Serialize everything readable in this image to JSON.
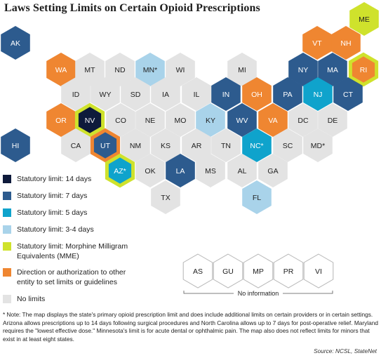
{
  "title": "Laws Setting Limits on Certain Opioid Prescriptions",
  "colors": {
    "d14": "#0e1a3b",
    "d7": "#2d5b8e",
    "d5": "#0fa3cc",
    "d34": "#a9d3ea",
    "mme": "#cfe22c",
    "direction": "#ef8631",
    "none": "#e3e3e3",
    "territory": "#ffffff"
  },
  "states": [
    {
      "abbr": "ME",
      "cat": "mme"
    },
    {
      "abbr": "AK",
      "cat": "d7"
    },
    {
      "abbr": "VT",
      "cat": "direction"
    },
    {
      "abbr": "NH",
      "cat": "direction"
    },
    {
      "abbr": "WA",
      "cat": "direction"
    },
    {
      "abbr": "MT",
      "cat": "none"
    },
    {
      "abbr": "ND",
      "cat": "none"
    },
    {
      "abbr": "MN*",
      "cat": "d34"
    },
    {
      "abbr": "WI",
      "cat": "none"
    },
    {
      "abbr": "MI",
      "cat": "none"
    },
    {
      "abbr": "NY",
      "cat": "d7"
    },
    {
      "abbr": "MA",
      "cat": "d7"
    },
    {
      "abbr": "RI",
      "cat": "direction",
      "outline": "mme"
    },
    {
      "abbr": "ID",
      "cat": "none"
    },
    {
      "abbr": "WY",
      "cat": "none"
    },
    {
      "abbr": "SD",
      "cat": "none"
    },
    {
      "abbr": "IA",
      "cat": "none"
    },
    {
      "abbr": "IL",
      "cat": "none"
    },
    {
      "abbr": "IN",
      "cat": "d7"
    },
    {
      "abbr": "OH",
      "cat": "direction"
    },
    {
      "abbr": "PA",
      "cat": "d7"
    },
    {
      "abbr": "NJ",
      "cat": "d5"
    },
    {
      "abbr": "CT",
      "cat": "d7"
    },
    {
      "abbr": "OR",
      "cat": "direction"
    },
    {
      "abbr": "NV",
      "cat": "d14",
      "outline": "mme"
    },
    {
      "abbr": "CO",
      "cat": "none"
    },
    {
      "abbr": "NE",
      "cat": "none"
    },
    {
      "abbr": "MO",
      "cat": "none"
    },
    {
      "abbr": "KY",
      "cat": "d34"
    },
    {
      "abbr": "WV",
      "cat": "d7"
    },
    {
      "abbr": "VA",
      "cat": "direction"
    },
    {
      "abbr": "DC",
      "cat": "none"
    },
    {
      "abbr": "DE",
      "cat": "none"
    },
    {
      "abbr": "HI",
      "cat": "d7"
    },
    {
      "abbr": "CA",
      "cat": "none"
    },
    {
      "abbr": "UT",
      "cat": "d7",
      "outline": "direction"
    },
    {
      "abbr": "NM",
      "cat": "none"
    },
    {
      "abbr": "KS",
      "cat": "none"
    },
    {
      "abbr": "AR",
      "cat": "none"
    },
    {
      "abbr": "TN",
      "cat": "none"
    },
    {
      "abbr": "NC*",
      "cat": "d5"
    },
    {
      "abbr": "SC",
      "cat": "none"
    },
    {
      "abbr": "MD*",
      "cat": "none"
    },
    {
      "abbr": "AZ*",
      "cat": "d5",
      "outline": "mme"
    },
    {
      "abbr": "OK",
      "cat": "none"
    },
    {
      "abbr": "LA",
      "cat": "d7"
    },
    {
      "abbr": "MS",
      "cat": "none"
    },
    {
      "abbr": "AL",
      "cat": "none"
    },
    {
      "abbr": "GA",
      "cat": "none"
    },
    {
      "abbr": "TX",
      "cat": "none"
    },
    {
      "abbr": "FL",
      "cat": "d34"
    }
  ],
  "territories": [
    "AS",
    "GU",
    "MP",
    "PR",
    "VI"
  ],
  "territory_note": "No information",
  "legend": [
    {
      "key": "d14",
      "label": "Statutory limit: 14 days"
    },
    {
      "key": "d7",
      "label": "Statutory limit: 7 days"
    },
    {
      "key": "d5",
      "label": "Statutory limit: 5 days"
    },
    {
      "key": "d34",
      "label": "Statutory limit: 3-4 days"
    },
    {
      "key": "mme",
      "label": "Statutory limit: Morphine Milligram\nEquivalents (MME)"
    },
    {
      "key": "direction",
      "label": "Direction or authorization to other\nentity to set limits or guidelines"
    },
    {
      "key": "none",
      "label": "No limits"
    }
  ],
  "note": "* Note: The map displays the state's primary opioid prescription limit and does include additional limits on certain providers or in certain settings. Arizona allows prescriptions up to 14 days following surgical procedures and North Carolina allows up to 7 days for post-operative relief. Maryland requires the \"lowest effective dose.\" Minnesota's limit is for acute dental or ophthalmic pain. The map also does not reflect limits for minors that exist in at least eight states.",
  "source": "Source: NCSL, StateNet"
}
